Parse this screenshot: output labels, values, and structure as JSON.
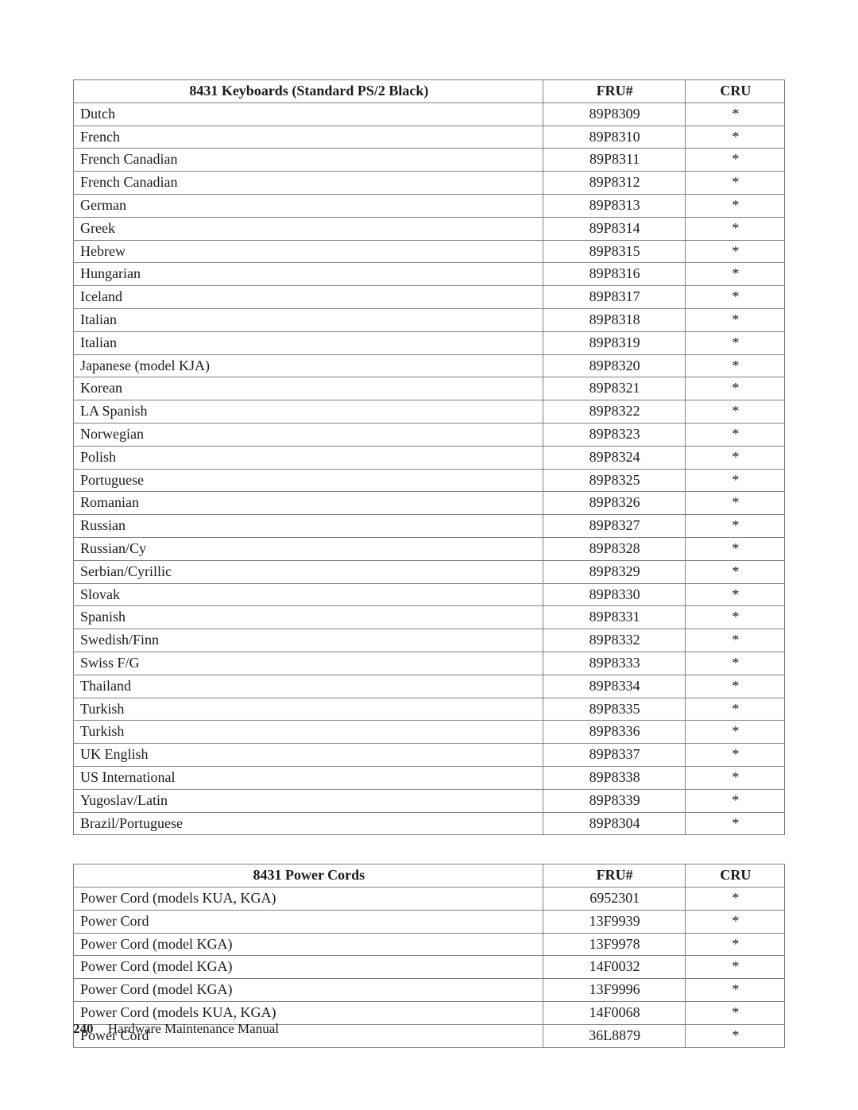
{
  "page": {
    "number": "240",
    "doc_title": "Hardware Maintenance Manual"
  },
  "cru_mark": "*",
  "style": {
    "border_color": "#808080",
    "text_color": "#1a1a1a",
    "background_color": "#ffffff",
    "font_family": "Palatino Linotype",
    "base_font_size_pt": 13
  },
  "tables": [
    {
      "columns": [
        "8431 Keyboards (Standard PS/2 Black)",
        "FRU#",
        "CRU"
      ],
      "col_widths_pct": [
        66,
        20,
        14
      ],
      "rows": [
        [
          "Dutch",
          "89P8309",
          "*"
        ],
        [
          "French",
          "89P8310",
          "*"
        ],
        [
          "French Canadian",
          "89P8311",
          "*"
        ],
        [
          "French Canadian",
          "89P8312",
          "*"
        ],
        [
          "German",
          "89P8313",
          "*"
        ],
        [
          "Greek",
          "89P8314",
          "*"
        ],
        [
          "Hebrew",
          "89P8315",
          "*"
        ],
        [
          "Hungarian",
          "89P8316",
          "*"
        ],
        [
          "Iceland",
          "89P8317",
          "*"
        ],
        [
          "Italian",
          "89P8318",
          "*"
        ],
        [
          "Italian",
          "89P8319",
          "*"
        ],
        [
          "Japanese (model KJA)",
          "89P8320",
          "*"
        ],
        [
          "Korean",
          "89P8321",
          "*"
        ],
        [
          "LA Spanish",
          "89P8322",
          "*"
        ],
        [
          "Norwegian",
          "89P8323",
          "*"
        ],
        [
          "Polish",
          "89P8324",
          "*"
        ],
        [
          "Portuguese",
          "89P8325",
          "*"
        ],
        [
          "Romanian",
          "89P8326",
          "*"
        ],
        [
          "Russian",
          "89P8327",
          "*"
        ],
        [
          "Russian/Cy",
          "89P8328",
          "*"
        ],
        [
          "Serbian/Cyrillic",
          "89P8329",
          "*"
        ],
        [
          "Slovak",
          "89P8330",
          "*"
        ],
        [
          "Spanish",
          "89P8331",
          "*"
        ],
        [
          "Swedish/Finn",
          "89P8332",
          "*"
        ],
        [
          "Swiss F/G",
          "89P8333",
          "*"
        ],
        [
          "Thailand",
          "89P8334",
          "*"
        ],
        [
          "Turkish",
          "89P8335",
          "*"
        ],
        [
          "Turkish",
          "89P8336",
          "*"
        ],
        [
          "UK English",
          "89P8337",
          "*"
        ],
        [
          "US International",
          "89P8338",
          "*"
        ],
        [
          "Yugoslav/Latin",
          "89P8339",
          "*"
        ],
        [
          "Brazil/Portuguese",
          "89P8304",
          "*"
        ]
      ]
    },
    {
      "columns": [
        "8431 Power Cords",
        "FRU#",
        "CRU"
      ],
      "col_widths_pct": [
        66,
        20,
        14
      ],
      "rows": [
        [
          "Power Cord (models KUA, KGA)",
          "6952301",
          "*"
        ],
        [
          "Power Cord",
          "13F9939",
          "*"
        ],
        [
          "Power Cord (model KGA)",
          "13F9978",
          "*"
        ],
        [
          "Power Cord (model KGA)",
          "14F0032",
          "*"
        ],
        [
          "Power Cord (model KGA)",
          "13F9996",
          "*"
        ],
        [
          "Power Cord (models KUA, KGA)",
          "14F0068",
          "*"
        ],
        [
          "Power Cord",
          "36L8879",
          "*"
        ]
      ]
    }
  ]
}
